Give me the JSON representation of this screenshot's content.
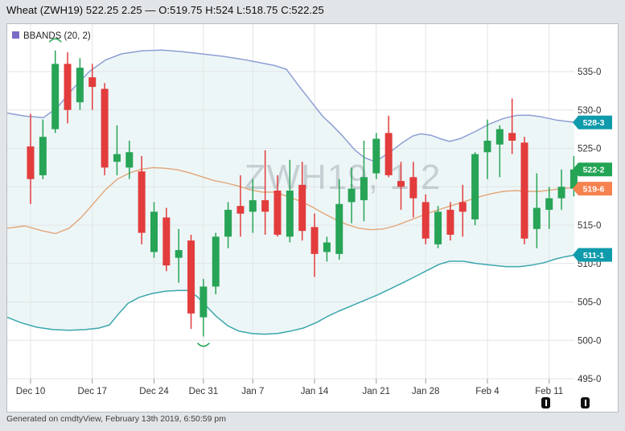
{
  "title_bar": {
    "text": "Wheat (ZWH19) 522.25 2.25 — O:519.75 H:524 L:518.75 C:522.25"
  },
  "footer": {
    "text": "Generated on cmdtyView, February 13th 2019, 6:50:59 pm"
  },
  "chart_data": {
    "type": "candlestick",
    "symbol": "ZWH19",
    "title": "Wheat (ZWH19)",
    "watermark": "ZWH19, 1,2",
    "legend": {
      "label": "BBANDS (20, 2)",
      "swatch_color": "#7a6bc7"
    },
    "last_quote": {
      "last": "522.25",
      "change": "2.25",
      "open": "519.75",
      "high": "524",
      "low": "518.75",
      "close": "522.25"
    },
    "y_axis": {
      "min": 495,
      "max": 539.5,
      "grid_step": 5,
      "grid_on": true,
      "tick_labels": [
        {
          "label": "535-0",
          "price": 535
        },
        {
          "label": "530-0",
          "price": 530
        },
        {
          "label": "525-0",
          "price": 525
        },
        {
          "label": "515-0",
          "price": 515
        },
        {
          "label": "510-0",
          "price": 510
        },
        {
          "label": "505-0",
          "price": 505
        },
        {
          "label": "500-0",
          "price": 500
        },
        {
          "label": "495-0",
          "price": 495
        }
      ],
      "unlabeled_gridlines": [
        520
      ]
    },
    "x_axis": {
      "tick_labels": [
        {
          "label": "Dec 10",
          "index": 0
        },
        {
          "label": "Dec 17",
          "index": 5
        },
        {
          "label": "Dec 24",
          "index": 10
        },
        {
          "label": "Dec 31",
          "index": 14
        },
        {
          "label": "Jan 7",
          "index": 18
        },
        {
          "label": "Jan 14",
          "index": 23
        },
        {
          "label": "Jan 21",
          "index": 28
        },
        {
          "label": "Jan 28",
          "index": 32
        },
        {
          "label": "Feb 4",
          "index": 37
        },
        {
          "label": "Feb 11",
          "index": 42
        }
      ]
    },
    "candles_ohlc": [
      [
        525.25,
        529.5,
        517.75,
        521.0
      ],
      [
        521.5,
        528.75,
        521.0,
        526.5
      ],
      [
        527.5,
        537.75,
        527.0,
        536.0
      ],
      [
        536.0,
        537.5,
        528.25,
        530.0
      ],
      [
        531.0,
        536.75,
        530.0,
        535.5
      ],
      [
        534.25,
        536.0,
        530.0,
        533.0
      ],
      [
        532.75,
        533.5,
        521.5,
        522.5
      ],
      [
        523.25,
        528.0,
        521.5,
        524.25
      ],
      [
        522.5,
        526.0,
        521.0,
        524.5
      ],
      [
        522.0,
        524.0,
        512.5,
        514.0
      ],
      [
        511.5,
        518.0,
        510.75,
        516.75
      ],
      [
        516.0,
        517.25,
        509.0,
        509.75
      ],
      [
        510.75,
        514.5,
        507.5,
        511.75
      ],
      [
        513.0,
        513.75,
        501.5,
        503.5
      ],
      [
        503.0,
        508.0,
        500.5,
        507.0
      ],
      [
        507.0,
        514.0,
        506.0,
        513.5
      ],
      [
        513.5,
        518.0,
        512.0,
        517.0
      ],
      [
        517.5,
        521.5,
        513.5,
        516.5
      ],
      [
        516.75,
        521.0,
        514.0,
        518.25
      ],
      [
        518.25,
        524.75,
        513.75,
        516.75
      ],
      [
        519.5,
        521.5,
        513.5,
        513.75
      ],
      [
        513.5,
        523.5,
        512.75,
        519.5
      ],
      [
        520.25,
        523.25,
        513.0,
        514.25
      ],
      [
        514.75,
        516.5,
        508.25,
        511.25
      ],
      [
        511.5,
        513.5,
        510.25,
        512.75
      ],
      [
        511.25,
        521.0,
        510.5,
        517.75
      ],
      [
        518.0,
        522.5,
        515.25,
        519.75
      ],
      [
        518.25,
        526.0,
        515.5,
        521.25
      ],
      [
        521.75,
        527.0,
        521.0,
        526.25
      ],
      [
        527.0,
        529.25,
        521.25,
        521.5
      ],
      [
        520.75,
        523.25,
        517.0,
        520.0
      ],
      [
        521.25,
        523.25,
        516.0,
        518.5
      ],
      [
        518.0,
        519.0,
        512.5,
        513.25
      ],
      [
        512.5,
        517.5,
        512.0,
        516.75
      ],
      [
        517.0,
        518.0,
        513.0,
        513.75
      ],
      [
        518.0,
        520.25,
        513.5,
        516.75
      ],
      [
        515.75,
        524.5,
        515.0,
        524.25
      ],
      [
        524.5,
        528.75,
        521.0,
        526.0
      ],
      [
        525.5,
        528.0,
        521.25,
        527.5
      ],
      [
        527.0,
        531.5,
        524.25,
        526.0
      ],
      [
        525.75,
        526.5,
        512.5,
        513.25
      ],
      [
        514.5,
        521.75,
        512.0,
        517.25
      ],
      [
        517.0,
        520.0,
        514.5,
        518.5
      ],
      [
        518.5,
        522.25,
        517.0,
        520.0
      ],
      [
        519.75,
        524.0,
        518.75,
        522.25
      ]
    ],
    "bbands": {
      "upper": [
        [
          8,
          529.6
        ],
        [
          30,
          529.2
        ],
        [
          53,
          529.0
        ],
        [
          70,
          530.3
        ],
        [
          90,
          532.8
        ],
        [
          110,
          535.0
        ],
        [
          130,
          536.5
        ],
        [
          150,
          537.3
        ],
        [
          175,
          537.7
        ],
        [
          200,
          537.8
        ],
        [
          225,
          537.6
        ],
        [
          250,
          537.3
        ],
        [
          275,
          537.0
        ],
        [
          300,
          536.6
        ],
        [
          320,
          536.2
        ],
        [
          340,
          535.8
        ],
        [
          355,
          535.3
        ],
        [
          370,
          533.2
        ],
        [
          385,
          531.2
        ],
        [
          400,
          529.2
        ],
        [
          412,
          528.0
        ],
        [
          425,
          526.6
        ],
        [
          440,
          524.8
        ],
        [
          452,
          523.8
        ],
        [
          462,
          523.4
        ],
        [
          472,
          523.7
        ],
        [
          485,
          524.6
        ],
        [
          500,
          525.8
        ],
        [
          512,
          526.6
        ],
        [
          522,
          526.9
        ],
        [
          535,
          526.7
        ],
        [
          548,
          526.2
        ],
        [
          558,
          525.9
        ],
        [
          572,
          526.3
        ],
        [
          590,
          527.2
        ],
        [
          608,
          528.2
        ],
        [
          625,
          528.9
        ],
        [
          642,
          529.3
        ],
        [
          658,
          529.3
        ],
        [
          672,
          529.1
        ],
        [
          690,
          528.7
        ],
        [
          705,
          528.5
        ],
        [
          713,
          528.4
        ]
      ],
      "middle": [
        [
          8,
          514.6
        ],
        [
          30,
          514.9
        ],
        [
          50,
          514.3
        ],
        [
          68,
          513.9
        ],
        [
          85,
          514.6
        ],
        [
          100,
          516.0
        ],
        [
          115,
          517.8
        ],
        [
          130,
          519.6
        ],
        [
          145,
          521.0
        ],
        [
          160,
          521.8
        ],
        [
          175,
          522.3
        ],
        [
          190,
          522.5
        ],
        [
          205,
          522.4
        ],
        [
          220,
          522.2
        ],
        [
          235,
          521.8
        ],
        [
          250,
          521.3
        ],
        [
          265,
          520.8
        ],
        [
          280,
          520.5
        ],
        [
          295,
          520.1
        ],
        [
          310,
          519.6
        ],
        [
          325,
          519.3
        ],
        [
          340,
          519.3
        ],
        [
          355,
          518.8
        ],
        [
          370,
          518.2
        ],
        [
          385,
          517.5
        ],
        [
          400,
          516.6
        ],
        [
          415,
          515.8
        ],
        [
          430,
          515.1
        ],
        [
          445,
          514.6
        ],
        [
          460,
          514.4
        ],
        [
          475,
          514.5
        ],
        [
          490,
          514.9
        ],
        [
          505,
          515.5
        ],
        [
          520,
          516.1
        ],
        [
          535,
          516.7
        ],
        [
          550,
          517.2
        ],
        [
          565,
          517.7
        ],
        [
          580,
          518.2
        ],
        [
          595,
          518.7
        ],
        [
          610,
          519.1
        ],
        [
          625,
          519.4
        ],
        [
          640,
          519.5
        ],
        [
          655,
          519.4
        ],
        [
          670,
          519.4
        ],
        [
          685,
          519.6
        ],
        [
          700,
          519.8
        ],
        [
          713,
          519.85
        ]
      ],
      "lower": [
        [
          8,
          503.0
        ],
        [
          25,
          502.3
        ],
        [
          45,
          501.7
        ],
        [
          65,
          501.4
        ],
        [
          85,
          501.3
        ],
        [
          105,
          501.4
        ],
        [
          122,
          501.6
        ],
        [
          135,
          502.0
        ],
        [
          146,
          503.4
        ],
        [
          158,
          504.8
        ],
        [
          172,
          505.6
        ],
        [
          188,
          506.1
        ],
        [
          205,
          506.4
        ],
        [
          220,
          506.5
        ],
        [
          232,
          506.5
        ],
        [
          244,
          505.7
        ],
        [
          256,
          504.4
        ],
        [
          268,
          503.1
        ],
        [
          282,
          501.9
        ],
        [
          296,
          501.2
        ],
        [
          312,
          500.9
        ],
        [
          328,
          500.8
        ],
        [
          344,
          500.9
        ],
        [
          360,
          501.2
        ],
        [
          376,
          501.6
        ],
        [
          392,
          502.3
        ],
        [
          406,
          503.1
        ],
        [
          420,
          503.8
        ],
        [
          436,
          504.5
        ],
        [
          452,
          505.2
        ],
        [
          468,
          505.9
        ],
        [
          484,
          506.7
        ],
        [
          500,
          507.5
        ],
        [
          515,
          508.3
        ],
        [
          530,
          509.1
        ],
        [
          545,
          509.9
        ],
        [
          558,
          510.3
        ],
        [
          575,
          510.3
        ],
        [
          592,
          510.0
        ],
        [
          610,
          509.8
        ],
        [
          628,
          509.6
        ],
        [
          645,
          509.6
        ],
        [
          660,
          509.8
        ],
        [
          675,
          510.1
        ],
        [
          690,
          510.6
        ],
        [
          702,
          510.9
        ],
        [
          713,
          511.1
        ]
      ]
    },
    "price_badges": [
      {
        "label": "528-3",
        "price": 528.375,
        "color": "#0f9bab",
        "meaning": "bband-upper"
      },
      {
        "label": "522-2",
        "price": 522.25,
        "color": "#23a455",
        "meaning": "last-price"
      },
      {
        "label": "519-6",
        "price": 519.75,
        "color": "#f5824f",
        "meaning": "bband-middle"
      },
      {
        "label": "511-1",
        "price": 511.125,
        "color": "#0f9bab",
        "meaning": "bband-lower"
      }
    ],
    "markers": [
      {
        "type": "arc-high",
        "index": 2,
        "price": 538.9
      },
      {
        "type": "arc-low",
        "index": 14,
        "price": 499.6
      }
    ],
    "colors": {
      "up": "#27a456",
      "down": "#e23c3c",
      "band_line_upper": "#8d9fd4",
      "band_line_lower": "#3ba7ad",
      "band_line_middle": "#e2a678",
      "band_fill": "rgba(80,170,175,0.10)",
      "grid": "#e2e4e6",
      "axis_text": "#333333",
      "watermark": "#98a0a8"
    }
  },
  "scroll_handles": [
    {
      "name": "left-scroll-handle"
    },
    {
      "name": "right-scroll-handle"
    }
  ]
}
